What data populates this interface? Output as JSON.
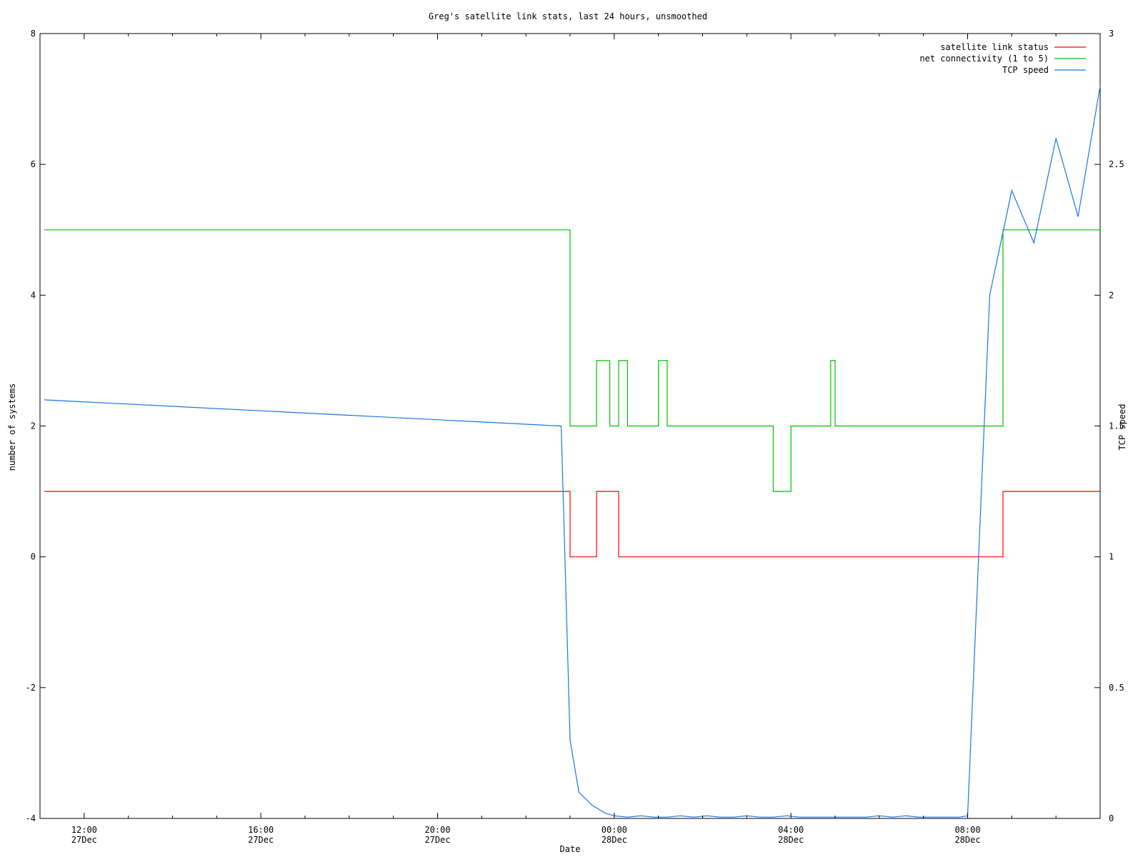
{
  "chart_data": {
    "type": "line",
    "title": "Greg's satellite link stats, last 24 hours, unsmoothed",
    "xlabel": "Date",
    "ylabel": "number of systems",
    "y2label": "TCP speed",
    "xlim_hours": [
      -1.0,
      23.0
    ],
    "ylim": [
      -4,
      8
    ],
    "y2lim": [
      0,
      3
    ],
    "grid": false,
    "legend_position": "top-right",
    "x_ticks": [
      {
        "time": "12:00",
        "date": "27Dec"
      },
      {
        "time": "16:00",
        "date": "27Dec"
      },
      {
        "time": "20:00",
        "date": "27Dec"
      },
      {
        "time": "00:00",
        "date": "28Dec"
      },
      {
        "time": "04:00",
        "date": "28Dec"
      },
      {
        "time": "08:00",
        "date": "28Dec"
      }
    ],
    "y_ticks": [
      "-4",
      "-2",
      "0",
      "2",
      "4",
      "6",
      "8"
    ],
    "y2_ticks": [
      "0",
      "0.5",
      "1",
      "1.5",
      "2",
      "2.5",
      "3"
    ],
    "series": [
      {
        "name": "satellite link status",
        "color": "#ff0000",
        "axis": "left",
        "x": [
          -0.9,
          10.8,
          11.0,
          11.3,
          11.6,
          11.9,
          12.1,
          12.4,
          12.5,
          12.8,
          13.0,
          13.2,
          13.5,
          14.2,
          14.5,
          14.7,
          14.8,
          15.0,
          15.3,
          15.6,
          16.0,
          16.2,
          16.4,
          16.5,
          16.7,
          16.9,
          17.0,
          17.6,
          18.0,
          18.2,
          18.3,
          18.4,
          18.6,
          18.7,
          20.0,
          20.8,
          21.4,
          23.0
        ],
        "values": [
          1,
          1,
          0,
          0,
          1,
          1,
          0,
          0,
          0,
          0,
          0,
          0,
          0,
          0,
          0,
          0,
          0,
          0,
          0,
          0,
          0,
          0,
          0,
          0,
          0,
          0,
          0,
          0,
          0,
          0,
          0,
          0,
          0,
          0,
          0,
          1,
          1,
          1
        ]
      },
      {
        "name": "net connectivity (1 to 5)",
        "color": "#00c000",
        "axis": "left",
        "x": [
          -0.9,
          10.8,
          11.0,
          11.3,
          11.6,
          11.9,
          12.1,
          12.3,
          12.5,
          12.8,
          13.0,
          13.2,
          13.5,
          14.2,
          14.5,
          14.7,
          14.8,
          15.0,
          15.3,
          15.6,
          16.0,
          16.2,
          16.4,
          16.5,
          16.7,
          16.9,
          17.0,
          17.6,
          18.0,
          18.2,
          18.3,
          18.4,
          18.6,
          18.7,
          20.0,
          20.8,
          21.4,
          23.0
        ],
        "values": [
          5,
          5,
          2,
          2,
          3,
          2,
          3,
          2,
          2,
          2,
          3,
          2,
          2,
          2,
          2,
          2,
          2,
          2,
          2,
          1,
          2,
          2,
          2,
          2,
          2,
          3,
          2,
          2,
          2,
          2,
          2,
          2,
          2,
          2,
          2,
          5,
          5,
          5
        ]
      },
      {
        "name": "TCP speed",
        "color": "#1a75e0",
        "axis": "right",
        "x": [
          -0.9,
          10.8,
          11.0,
          11.2,
          11.5,
          11.8,
          12.0,
          12.3,
          12.6,
          12.9,
          13.2,
          13.5,
          13.8,
          14.1,
          14.4,
          14.7,
          15.0,
          15.3,
          15.6,
          15.9,
          16.2,
          16.5,
          16.8,
          17.1,
          17.4,
          17.7,
          18.0,
          18.3,
          18.6,
          18.9,
          19.2,
          19.5,
          19.8,
          20.0,
          20.5,
          21.0,
          21.5,
          22.0,
          22.5,
          23.0
        ],
        "values": [
          1.6,
          1.5,
          0.3,
          0.1,
          0.05,
          0.02,
          0.01,
          0.005,
          0.01,
          0.005,
          0.005,
          0.01,
          0.005,
          0.01,
          0.005,
          0.005,
          0.01,
          0.005,
          0.005,
          0.01,
          0.005,
          0.005,
          0.005,
          0.005,
          0.005,
          0.005,
          0.01,
          0.005,
          0.01,
          0.005,
          0.005,
          0.005,
          0.005,
          0.01,
          2.0,
          2.4,
          2.2,
          2.6,
          2.3,
          2.8
        ]
      }
    ]
  }
}
